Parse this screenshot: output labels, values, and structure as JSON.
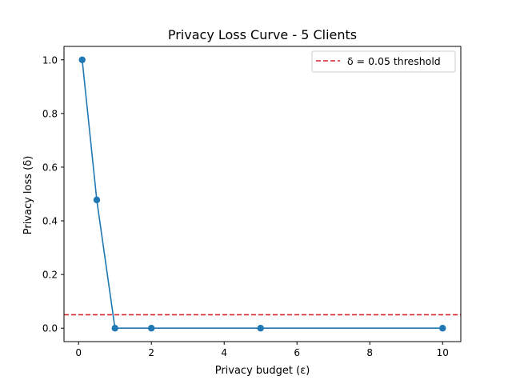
{
  "chart_data": {
    "type": "line",
    "title": "Privacy Loss Curve - 5 Clients",
    "xlabel": "Privacy budget (ε)",
    "ylabel": "Privacy loss (δ)",
    "xlim": [
      -0.4,
      10.5
    ],
    "ylim": [
      -0.05,
      1.05
    ],
    "x_ticks": [
      0,
      2,
      4,
      6,
      8,
      10
    ],
    "y_ticks": [
      0.0,
      0.2,
      0.4,
      0.6,
      0.8,
      1.0
    ],
    "x_tick_labels": [
      "0",
      "2",
      "4",
      "6",
      "8",
      "10"
    ],
    "y_tick_labels": [
      "0.0",
      "0.2",
      "0.4",
      "0.6",
      "0.8",
      "1.0"
    ],
    "grid": false,
    "legend_position": "top-right",
    "series": [
      {
        "x": [
          0.1,
          0.5,
          1,
          2,
          5,
          10
        ],
        "y": [
          1.0,
          0.478,
          0.0,
          0.0,
          0.0,
          0.0
        ],
        "color": "#1f77b4",
        "marker": "circle"
      }
    ],
    "threshold": {
      "name": "δ = 0.05 threshold",
      "y": 0.05,
      "color": "#d62728",
      "style": "dashed"
    }
  }
}
